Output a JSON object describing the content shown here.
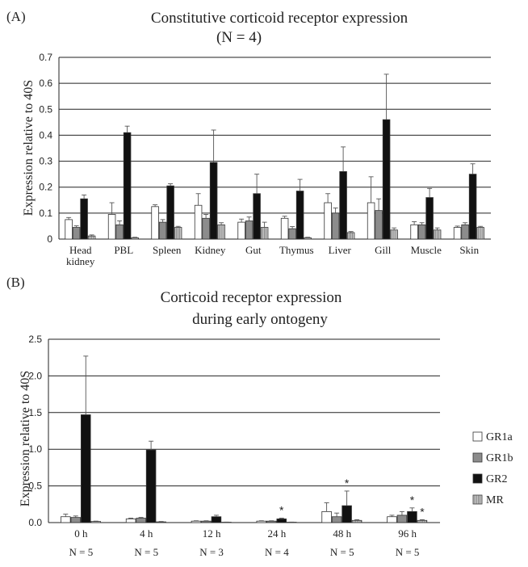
{
  "colors": {
    "GR1a": "#ffffff",
    "GR1b": "#8c8c8c",
    "GR2": "#111111",
    "MR": "#cccccc",
    "axis": "#222222",
    "grid": "#222222"
  },
  "chart_data": [
    {
      "panel_label": "(A)",
      "type": "bar",
      "title": "Constitutive corticoid receptor expression",
      "subtitle": "(N = 4)",
      "ylabel": "Expression relative to 40S",
      "xlabel": "",
      "ylim": [
        0,
        0.7
      ],
      "yticks": [
        "0",
        "0.1",
        "0.2",
        "0.3",
        "0.4",
        "0.5",
        "0.6",
        "0.7"
      ],
      "grid": true,
      "categories": [
        "Head kidney",
        "PBL",
        "Spleen",
        "Kidney",
        "Gut",
        "Thymus",
        "Liver",
        "Gill",
        "Muscle",
        "Skin"
      ],
      "category_labels": [
        [
          "Head",
          "kidney"
        ],
        [
          "PBL"
        ],
        [
          "Spleen"
        ],
        [
          "Kidney"
        ],
        [
          "Gut"
        ],
        [
          "Thymus"
        ],
        [
          "Liver"
        ],
        [
          "Gill"
        ],
        [
          "Muscle"
        ],
        [
          "Skin"
        ]
      ],
      "series": [
        {
          "name": "GR1a",
          "values": [
            0.075,
            0.095,
            0.125,
            0.13,
            0.065,
            0.08,
            0.14,
            0.14,
            0.055,
            0.045
          ],
          "errors": [
            0.008,
            0.045,
            0.007,
            0.045,
            0.012,
            0.008,
            0.035,
            0.1,
            0.012,
            0.005
          ]
        },
        {
          "name": "GR1b",
          "values": [
            0.045,
            0.055,
            0.065,
            0.08,
            0.07,
            0.04,
            0.1,
            0.11,
            0.055,
            0.055
          ],
          "errors": [
            0.006,
            0.015,
            0.01,
            0.015,
            0.015,
            0.008,
            0.02,
            0.045,
            0.008,
            0.008
          ]
        },
        {
          "name": "GR2",
          "values": [
            0.155,
            0.41,
            0.205,
            0.295,
            0.175,
            0.185,
            0.26,
            0.46,
            0.16,
            0.25
          ],
          "errors": [
            0.015,
            0.025,
            0.008,
            0.125,
            0.075,
            0.045,
            0.095,
            0.175,
            0.035,
            0.04
          ]
        },
        {
          "name": "MR",
          "values": [
            0.012,
            0.005,
            0.045,
            0.055,
            0.045,
            0.005,
            0.025,
            0.035,
            0.035,
            0.045
          ],
          "errors": [
            0.004,
            0.002,
            0.004,
            0.008,
            0.02,
            0.002,
            0.004,
            0.008,
            0.008,
            0.004
          ]
        }
      ]
    },
    {
      "panel_label": "(B)",
      "type": "bar",
      "title": "Corticoid receptor expression",
      "subtitle": "during early ontogeny",
      "ylabel": "Expression relative to 40S",
      "xlabel": "",
      "ylim": [
        0,
        2.5
      ],
      "yticks": [
        "0.0",
        "0.5",
        "1.0",
        "1.5",
        "2.0",
        "2.5"
      ],
      "grid": true,
      "categories": [
        "0 h",
        "4 h",
        "12 h",
        "24 h",
        "48 h",
        "96 h"
      ],
      "n_labels": [
        "N = 5",
        "N = 5",
        "N = 3",
        "N = 4",
        "N = 5",
        "N = 5"
      ],
      "legend": {
        "position": "right",
        "entries": [
          "GR1a",
          "GR1b",
          "GR2",
          "MR"
        ]
      },
      "annotations": [
        {
          "text": "*",
          "category": "24 h",
          "series": "GR2"
        },
        {
          "text": "*",
          "category": "48 h",
          "series": "GR2"
        },
        {
          "text": "*",
          "category": "96 h",
          "series": "GR2"
        },
        {
          "text": "*",
          "category": "96 h",
          "series": "MR"
        }
      ],
      "series": [
        {
          "name": "GR1a",
          "values": [
            0.08,
            0.05,
            0.02,
            0.02,
            0.15,
            0.08
          ],
          "errors": [
            0.035,
            0.01,
            0.005,
            0.005,
            0.12,
            0.02
          ]
        },
        {
          "name": "GR1b",
          "values": [
            0.07,
            0.06,
            0.02,
            0.02,
            0.08,
            0.1
          ],
          "errors": [
            0.02,
            0.01,
            0.005,
            0.005,
            0.05,
            0.05
          ]
        },
        {
          "name": "GR2",
          "values": [
            1.47,
            0.99,
            0.08,
            0.05,
            0.23,
            0.15
          ],
          "errors": [
            0.8,
            0.12,
            0.02,
            0.01,
            0.2,
            0.05
          ]
        },
        {
          "name": "MR",
          "values": [
            0.015,
            0.01,
            0.005,
            0.005,
            0.03,
            0.03
          ],
          "errors": [
            0.005,
            0.005,
            0.002,
            0.002,
            0.01,
            0.01
          ]
        }
      ]
    }
  ]
}
